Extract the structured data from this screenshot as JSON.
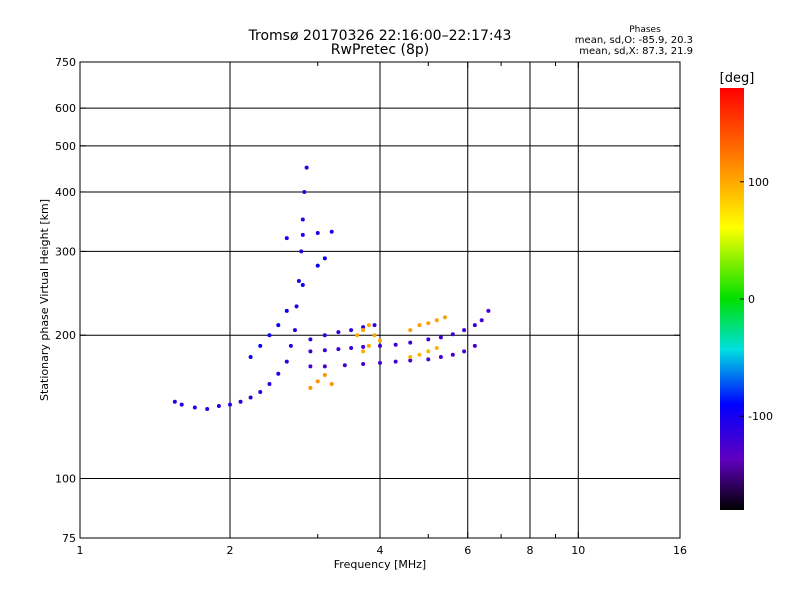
{
  "chart_data": {
    "type": "scatter",
    "title": "Tromsø 20170326 22:16:00–22:17:43",
    "subtitle": "RwPretec (8p)",
    "xlabel": "Frequency [MHz]",
    "ylabel": "Stationary phase Virtual Height [km]",
    "x_scale": "log",
    "y_scale": "log",
    "xlim": [
      1,
      16
    ],
    "ylim": [
      75,
      750
    ],
    "x_ticks": [
      1,
      2,
      4,
      6,
      8,
      10,
      16
    ],
    "x_tick_labels": [
      "1",
      "2",
      "4",
      "6",
      "8",
      "10",
      "16"
    ],
    "y_ticks": [
      75,
      100,
      200,
      300,
      400,
      500,
      600,
      750
    ],
    "y_tick_labels": [
      "75",
      "100",
      "200",
      "300",
      "400",
      "500",
      "600",
      "750"
    ],
    "x_minor_ticks": [
      3,
      5,
      7,
      9
    ],
    "grid": true,
    "stats": {
      "heading": "Phases",
      "line_o": "mean, sd,O: -85.9, 20.3",
      "line_x": "mean, sd,X:  87.3, 21.9"
    },
    "colorbar": {
      "label": "[deg]",
      "range": [
        -180,
        180
      ],
      "ticks": [
        100,
        0,
        -100
      ],
      "tick_labels": [
        "100",
        "0",
        "-100"
      ]
    },
    "series": [
      {
        "phase": -110,
        "points": [
          [
            1.55,
            145
          ],
          [
            1.6,
            143
          ],
          [
            1.7,
            141
          ],
          [
            1.8,
            140
          ],
          [
            1.9,
            142
          ],
          [
            2.0,
            143
          ],
          [
            2.1,
            145
          ],
          [
            2.2,
            148
          ],
          [
            2.3,
            152
          ],
          [
            2.4,
            158
          ],
          [
            2.5,
            166
          ],
          [
            2.6,
            176
          ],
          [
            2.65,
            190
          ],
          [
            2.7,
            205
          ],
          [
            2.72,
            230
          ],
          [
            2.75,
            260
          ],
          [
            2.78,
            300
          ],
          [
            2.8,
            350
          ],
          [
            2.82,
            400
          ],
          [
            2.85,
            450
          ]
        ]
      },
      {
        "phase": -120,
        "points": [
          [
            2.9,
            185
          ],
          [
            3.1,
            186
          ],
          [
            3.3,
            187
          ],
          [
            3.5,
            188
          ],
          [
            3.7,
            189
          ],
          [
            4.0,
            190
          ],
          [
            4.3,
            191
          ],
          [
            4.6,
            193
          ],
          [
            5.0,
            196
          ],
          [
            5.3,
            198
          ],
          [
            5.6,
            201
          ],
          [
            5.9,
            205
          ],
          [
            6.2,
            210
          ],
          [
            6.4,
            215
          ],
          [
            6.6,
            225
          ]
        ]
      },
      {
        "phase": -125,
        "points": [
          [
            2.9,
            172
          ],
          [
            3.1,
            172
          ],
          [
            3.4,
            173
          ],
          [
            3.7,
            174
          ],
          [
            4.0,
            175
          ],
          [
            4.3,
            176
          ],
          [
            4.6,
            177
          ],
          [
            5.0,
            178
          ],
          [
            5.3,
            180
          ],
          [
            5.6,
            182
          ],
          [
            5.9,
            185
          ],
          [
            6.2,
            190
          ]
        ]
      },
      {
        "phase": -115,
        "points": [
          [
            2.9,
            196
          ],
          [
            3.1,
            200
          ],
          [
            3.3,
            203
          ],
          [
            3.5,
            205
          ],
          [
            3.7,
            208
          ],
          [
            3.9,
            210
          ]
        ]
      },
      {
        "phase": -95,
        "points": [
          [
            2.2,
            180
          ],
          [
            2.3,
            190
          ],
          [
            2.4,
            200
          ],
          [
            2.5,
            210
          ],
          [
            2.6,
            225
          ],
          [
            2.8,
            255
          ],
          [
            3.0,
            280
          ],
          [
            3.1,
            290
          ]
        ]
      },
      {
        "phase": -105,
        "points": [
          [
            2.6,
            320
          ],
          [
            2.8,
            325
          ],
          [
            3.0,
            328
          ],
          [
            3.2,
            330
          ]
        ]
      },
      {
        "phase": 100,
        "points": [
          [
            3.6,
            200
          ],
          [
            3.7,
            205
          ],
          [
            3.8,
            210
          ],
          [
            3.9,
            200
          ],
          [
            4.0,
            195
          ],
          [
            3.8,
            190
          ],
          [
            3.7,
            185
          ]
        ]
      },
      {
        "phase": 105,
        "points": [
          [
            4.6,
            205
          ],
          [
            4.8,
            210
          ],
          [
            5.0,
            212
          ],
          [
            5.2,
            215
          ],
          [
            5.4,
            218
          ]
        ]
      },
      {
        "phase": 95,
        "points": [
          [
            4.6,
            180
          ],
          [
            4.8,
            182
          ],
          [
            5.0,
            185
          ],
          [
            5.2,
            188
          ]
        ]
      },
      {
        "phase": 110,
        "points": [
          [
            3.0,
            160
          ],
          [
            3.1,
            165
          ],
          [
            3.2,
            158
          ],
          [
            2.9,
            155
          ]
        ]
      }
    ]
  }
}
